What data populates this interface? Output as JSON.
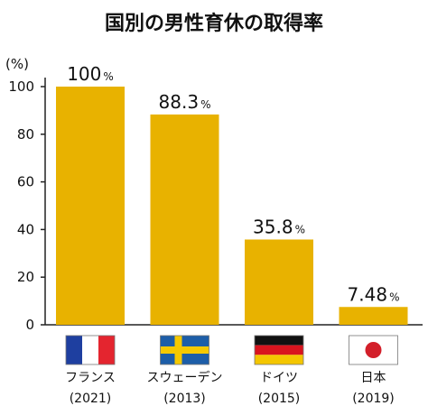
{
  "chart_data": {
    "type": "bar",
    "title": "国別の男性育休の取得率",
    "y_unit": "(%)",
    "ylim": [
      0,
      100
    ],
    "yticks": [
      0,
      20,
      40,
      60,
      80,
      100
    ],
    "grid": false,
    "categories": [
      {
        "name": "フランス",
        "year": "(2021)",
        "flag": "france-flag-icon"
      },
      {
        "name": "スウェーデン",
        "year": "(2013)",
        "flag": "sweden-flag-icon"
      },
      {
        "name": "ドイツ",
        "year": "(2015)",
        "flag": "germany-flag-icon"
      },
      {
        "name": "日本",
        "year": "(2019)",
        "flag": "japan-flag-icon"
      }
    ],
    "values": [
      100,
      88.3,
      35.8,
      7.48
    ],
    "value_labels": [
      "100",
      "88.3",
      "35.8",
      "7.48"
    ],
    "value_suffix": "%",
    "bar_color": "#E8B200"
  }
}
